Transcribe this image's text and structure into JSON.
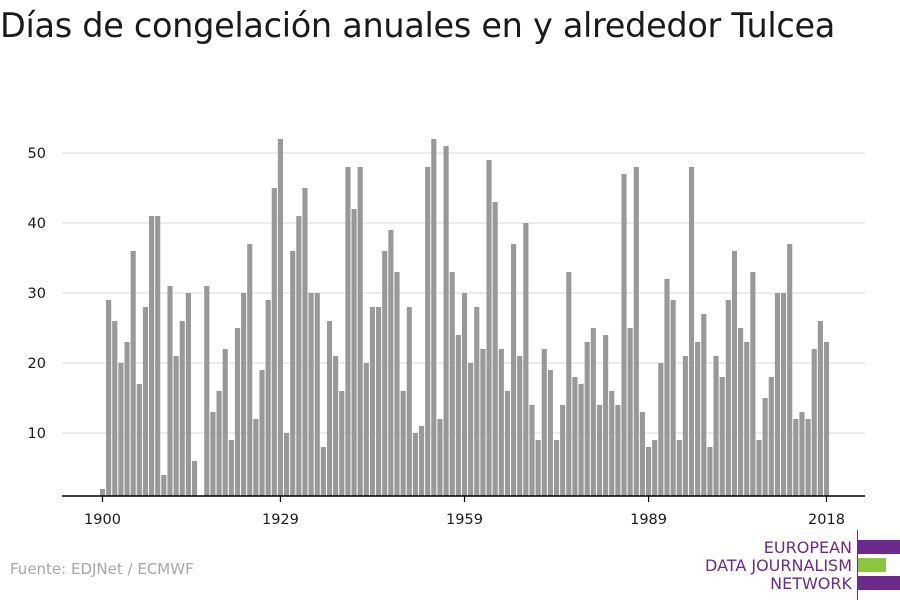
{
  "title": "Días de congelación anuales en y alrededor Tulcea",
  "source": "Fuente: EDJNet / ECMWF",
  "logo": {
    "line1": "EUROPEAN",
    "line2": "DATA JOURNALISM",
    "line3": "NETWORK",
    "colors": {
      "primary": "#6c2a8e",
      "accent": "#8cc63f"
    }
  },
  "colors": {
    "bar": "#999999",
    "grid": "#d9d9d9",
    "axis": "#000000",
    "text": "#1a1a1a",
    "source": "#a6a6a6"
  },
  "chart_data": {
    "type": "bar",
    "x": [
      1900,
      1901,
      1902,
      1903,
      1904,
      1905,
      1906,
      1907,
      1908,
      1909,
      1910,
      1911,
      1912,
      1913,
      1914,
      1915,
      1916,
      1917,
      1918,
      1919,
      1920,
      1921,
      1922,
      1923,
      1924,
      1925,
      1926,
      1927,
      1928,
      1929,
      1930,
      1931,
      1932,
      1933,
      1934,
      1935,
      1936,
      1937,
      1938,
      1939,
      1940,
      1941,
      1942,
      1943,
      1944,
      1945,
      1946,
      1947,
      1948,
      1949,
      1950,
      1951,
      1952,
      1953,
      1954,
      1955,
      1956,
      1957,
      1958,
      1959,
      1960,
      1961,
      1962,
      1963,
      1964,
      1965,
      1966,
      1967,
      1968,
      1969,
      1970,
      1971,
      1972,
      1973,
      1974,
      1975,
      1976,
      1977,
      1978,
      1979,
      1980,
      1981,
      1982,
      1983,
      1984,
      1985,
      1986,
      1987,
      1988,
      1989,
      1990,
      1991,
      1992,
      1993,
      1994,
      1995,
      1996,
      1997,
      1998,
      1999,
      2000,
      2001,
      2002,
      2003,
      2004,
      2005,
      2006,
      2007,
      2008,
      2009,
      2010,
      2011,
      2012,
      2013,
      2014,
      2015,
      2016,
      2017,
      2018
    ],
    "values": [
      2,
      29,
      26,
      20,
      23,
      36,
      17,
      28,
      41,
      41,
      4,
      31,
      21,
      26,
      30,
      6,
      0,
      31,
      13,
      16,
      22,
      9,
      25,
      30,
      37,
      12,
      19,
      29,
      45,
      52,
      10,
      36,
      41,
      45,
      30,
      30,
      8,
      26,
      21,
      16,
      48,
      42,
      48,
      20,
      28,
      28,
      36,
      39,
      33,
      16,
      28,
      10,
      11,
      48,
      52,
      12,
      51,
      33,
      24,
      30,
      20,
      28,
      22,
      49,
      43,
      22,
      16,
      37,
      21,
      40,
      14,
      9,
      22,
      19,
      9,
      14,
      33,
      18,
      17,
      23,
      25,
      14,
      24,
      16,
      14,
      47,
      25,
      48,
      13,
      8,
      9,
      20,
      32,
      29,
      9,
      21,
      48,
      23,
      27,
      8,
      21,
      18,
      29,
      36,
      25,
      23,
      33,
      9,
      15,
      18,
      30,
      30,
      37,
      12,
      13,
      12,
      22,
      26,
      23
    ],
    "xticks": [
      "1900",
      "1929",
      "1959",
      "1989",
      "2018"
    ],
    "yticks": [
      10,
      20,
      30,
      40,
      50
    ],
    "ylim": [
      1,
      54
    ],
    "grid": true
  }
}
